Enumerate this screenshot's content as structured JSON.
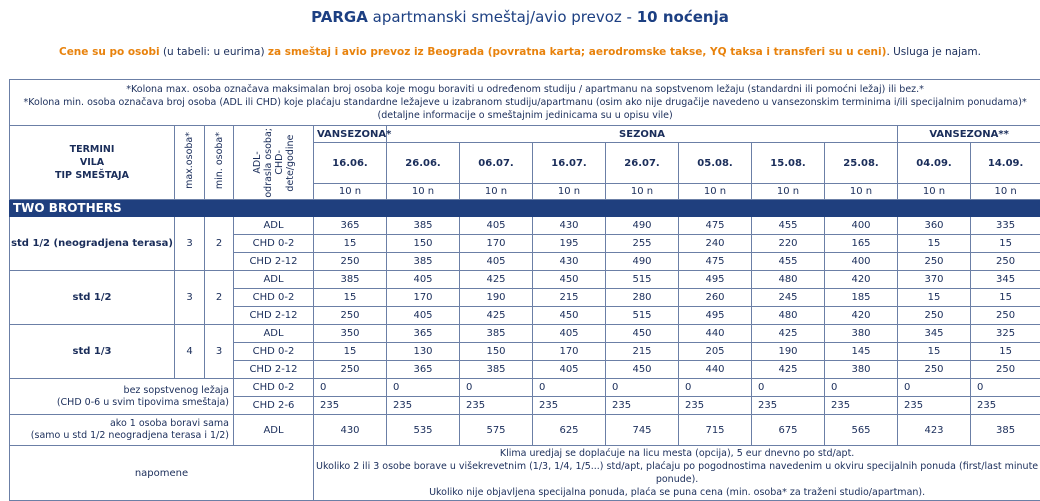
{
  "title": {
    "destination": "PARGA",
    "middle": " apartmanski smeštaj/avio prevoz - ",
    "nights": "10 noćenja"
  },
  "subtitle": {
    "part1": "Cene su po osobi",
    "part2": " (u tabeli: u eurima) ",
    "part3": "za smeštaj i avio prevoz iz Beograda (povratna karta; aerodromske takse, YQ taksa i transferi su u ceni)",
    "part4": ". Usluga je najam."
  },
  "notes": [
    "*Kolona max. osoba označava maksimalan broj osoba koje mogu boraviti u određenom studiju / apartmanu na sopstvenom ležaju (standardni ili pomoćni ležaj) ili bez.*",
    "*Kolona min. osoba označava broj osoba (ADL ili CHD) koje plaćaju standardne ležajeve u izabranom studiju/apartmanu (osim ako nije drugačije navedeno u vansezonskim terminima i/ili specijalnim ponudama)*",
    "(detaljne informacije o smeštajnim jedinicama su u opisu vile)"
  ],
  "header": {
    "termini": "TERMINI",
    "vila": "VILA",
    "tip": "TIP SMEŠTAJA",
    "max": "max.osoba*",
    "min": "min. osoba*",
    "adl_line1": "ADL-",
    "adl_line2": "odrasla osoba;",
    "adl_line3": "CHD-",
    "adl_line4": "dete/godine",
    "vansezona1": "VANSEZONA*",
    "sezona": "SEZONA",
    "vansezona2": "VANSEZONA**"
  },
  "dates": [
    "16.06.",
    "26.06.",
    "06.07.",
    "16.07.",
    "26.07.",
    "05.08.",
    "15.08.",
    "25.08.",
    "04.09.",
    "14.09."
  ],
  "nights_label": "10 n",
  "villa": "TWO BROTHERS",
  "groups": [
    {
      "name": "std 1/2 (neogradjena terasa)",
      "max": "3",
      "min": "2",
      "rows": [
        {
          "cat": "ADL",
          "values": [
            "365",
            "385",
            "405",
            "430",
            "490",
            "475",
            "455",
            "400",
            "360",
            "335"
          ]
        },
        {
          "cat": "CHD 0-2",
          "values": [
            "15",
            "150",
            "170",
            "195",
            "255",
            "240",
            "220",
            "165",
            "15",
            "15"
          ]
        },
        {
          "cat": "CHD 2-12",
          "values": [
            "250",
            "385",
            "405",
            "430",
            "490",
            "475",
            "455",
            "400",
            "250",
            "250"
          ]
        }
      ]
    },
    {
      "name": "std 1/2",
      "max": "3",
      "min": "2",
      "rows": [
        {
          "cat": "ADL",
          "values": [
            "385",
            "405",
            "425",
            "450",
            "515",
            "495",
            "480",
            "420",
            "370",
            "345"
          ]
        },
        {
          "cat": "CHD 0-2",
          "values": [
            "15",
            "170",
            "190",
            "215",
            "280",
            "260",
            "245",
            "185",
            "15",
            "15"
          ]
        },
        {
          "cat": "CHD 2-12",
          "values": [
            "250",
            "405",
            "425",
            "450",
            "515",
            "495",
            "480",
            "420",
            "250",
            "250"
          ]
        }
      ]
    },
    {
      "name": "std 1/3",
      "max": "4",
      "min": "3",
      "rows": [
        {
          "cat": "ADL",
          "values": [
            "350",
            "365",
            "385",
            "405",
            "450",
            "440",
            "425",
            "380",
            "345",
            "325"
          ]
        },
        {
          "cat": "CHD 0-2",
          "values": [
            "15",
            "130",
            "150",
            "170",
            "215",
            "205",
            "190",
            "145",
            "15",
            "15"
          ]
        },
        {
          "cat": "CHD 2-12",
          "values": [
            "250",
            "365",
            "385",
            "405",
            "450",
            "440",
            "425",
            "380",
            "250",
            "250"
          ]
        }
      ]
    }
  ],
  "no_bed": {
    "line1": "bez sopstvenog ležaja",
    "line2": "(CHD 0-6 u svim tipovima smeštaja)",
    "rows": [
      {
        "cat": "CHD 0-2",
        "values": [
          "0",
          "0",
          "0",
          "0",
          "0",
          "0",
          "0",
          "0",
          "0",
          "0"
        ]
      },
      {
        "cat": "CHD 2-6",
        "values": [
          "235",
          "235",
          "235",
          "235",
          "235",
          "235",
          "235",
          "235",
          "235",
          "235"
        ]
      }
    ]
  },
  "single": {
    "line1": "ako 1 osoba boravi sama",
    "line2": "(samo u std 1/2 neogradjena terasa i 1/2)",
    "cat": "ADL",
    "values": [
      "430",
      "535",
      "575",
      "625",
      "745",
      "715",
      "675",
      "565",
      "423",
      "385"
    ]
  },
  "napomene": {
    "label": "napomene",
    "lines": [
      "Klima uredjaj se doplaćuje na licu mesta (opcija), 5 eur dnevno po std/apt.",
      "Ukoliko 2 ili 3 osobe borave u višekrevetnim (1/3, 1/4, 1/5...) std/apt, plaćaju po pogodnostima navedenim u okviru specijalnih ponuda (first/last minute ponude).",
      "Ukoliko nije objavljena specijalna ponuda, plaća se puna cena (min. osoba* za traženi studio/apartman)."
    ]
  }
}
